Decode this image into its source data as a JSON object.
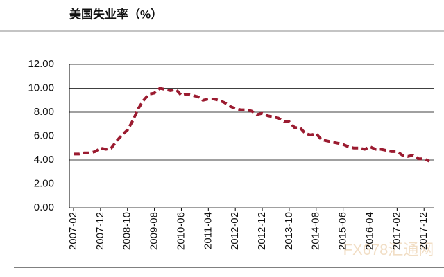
{
  "chart_data": {
    "type": "line",
    "title": "美国失业率（%）",
    "watermark": "FX678汇通网",
    "categories": [
      "2007-02",
      null,
      null,
      null,
      null,
      "2007-12",
      null,
      null,
      null,
      null,
      "2008-10",
      null,
      null,
      null,
      null,
      "2009-08",
      null,
      null,
      null,
      null,
      "2010-06",
      null,
      null,
      null,
      null,
      "2011-04",
      null,
      null,
      null,
      null,
      "2012-02",
      null,
      null,
      null,
      null,
      "2012-12",
      null,
      null,
      null,
      null,
      "2013-10",
      null,
      null,
      null,
      null,
      "2014-08",
      null,
      null,
      null,
      null,
      "2015-06",
      null,
      null,
      null,
      null,
      "2016-04",
      null,
      null,
      null,
      null,
      "2017-02",
      null,
      null,
      null,
      null,
      "2017-12",
      null
    ],
    "values": [
      4.5,
      4.5,
      4.6,
      4.6,
      4.7,
      5.0,
      4.9,
      5.0,
      5.6,
      6.1,
      6.5,
      7.3,
      8.3,
      9.0,
      9.5,
      9.6,
      10.0,
      9.9,
      9.8,
      9.9,
      9.4,
      9.5,
      9.4,
      9.3,
      9.0,
      9.1,
      9.1,
      9.0,
      8.8,
      8.5,
      8.3,
      8.2,
      8.2,
      8.1,
      7.8,
      7.9,
      7.7,
      7.6,
      7.5,
      7.2,
      7.2,
      6.7,
      6.7,
      6.2,
      6.1,
      6.2,
      5.7,
      5.6,
      5.5,
      5.4,
      5.3,
      5.1,
      5.0,
      5.0,
      4.9,
      5.1,
      4.9,
      4.9,
      4.8,
      4.7,
      4.7,
      4.4,
      4.3,
      4.4,
      4.1,
      4.1,
      3.9
    ],
    "color": "#9b1b30",
    "ylim": [
      0,
      12
    ],
    "yticks": [
      {
        "value": 0,
        "label": "0.00"
      },
      {
        "value": 2,
        "label": "2.00"
      },
      {
        "value": 4,
        "label": "4.00"
      },
      {
        "value": 6,
        "label": "6.00"
      },
      {
        "value": 8,
        "label": "8.00"
      },
      {
        "value": 10,
        "label": "10.00"
      },
      {
        "value": 12,
        "label": "12.00"
      }
    ],
    "grid": true
  }
}
